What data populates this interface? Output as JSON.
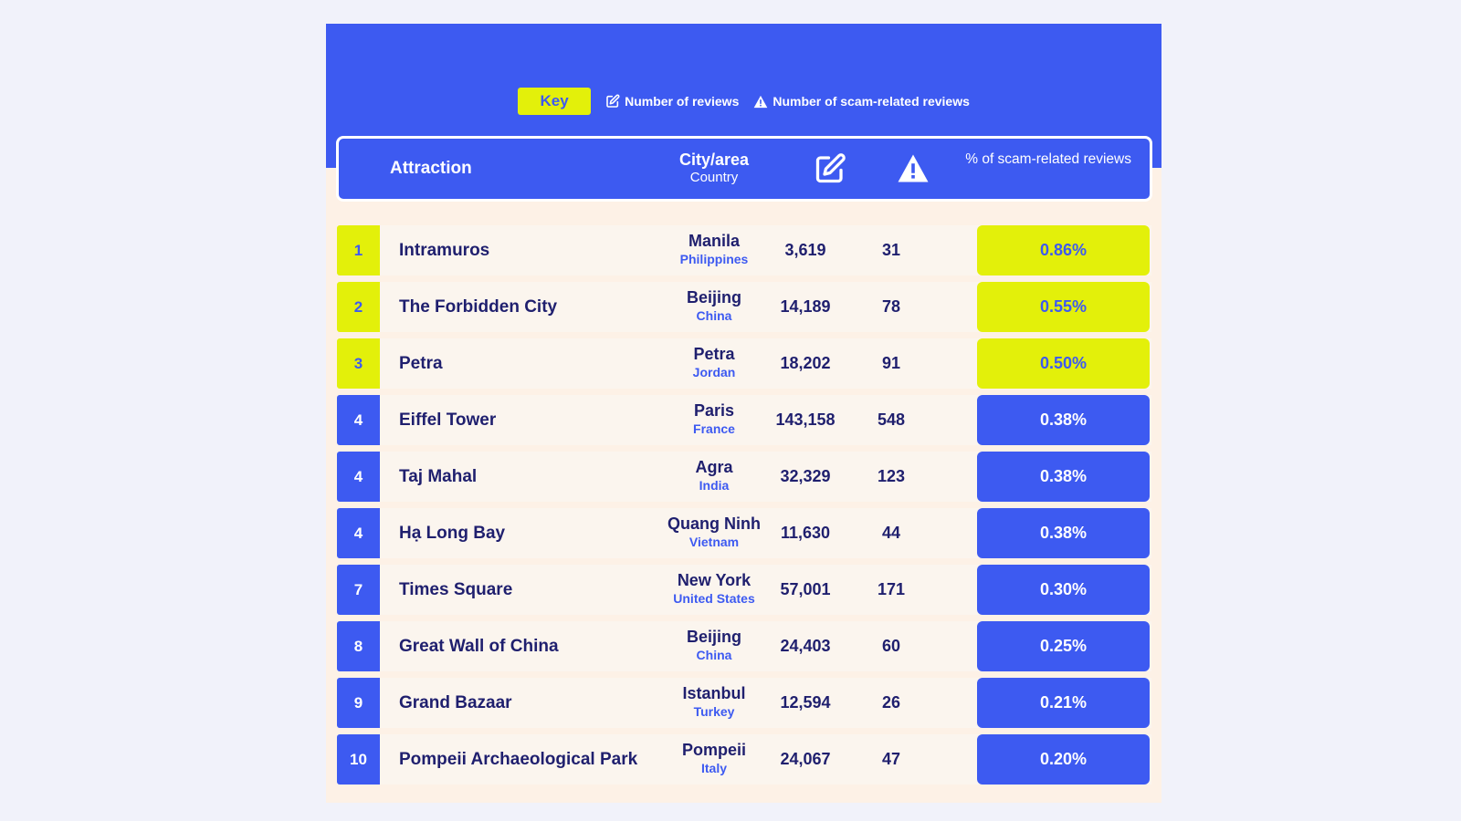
{
  "key": {
    "label": "Key",
    "reviews_label": "Number of reviews",
    "scam_label": "Number of scam-related reviews"
  },
  "header": {
    "attraction": "Attraction",
    "city": "City/area",
    "country": "Country",
    "reviews_icon": "edit-icon",
    "scam_icon": "warning-icon",
    "pct": "% of scam-related reviews"
  },
  "colors": {
    "accent_blue": "#3d5af1",
    "accent_yellow": "#e3f00a",
    "text_dark": "#1f1f6e"
  },
  "rows": [
    {
      "rank": "1",
      "attraction": "Intramuros",
      "city": "Manila",
      "country": "Philippines",
      "reviews": "3,619",
      "scam": "31",
      "pct": "0.86%",
      "highlight": true
    },
    {
      "rank": "2",
      "attraction": "The Forbidden City",
      "city": "Beijing",
      "country": "China",
      "reviews": "14,189",
      "scam": "78",
      "pct": "0.55%",
      "highlight": true
    },
    {
      "rank": "3",
      "attraction": "Petra",
      "city": "Petra",
      "country": "Jordan",
      "reviews": "18,202",
      "scam": "91",
      "pct": "0.50%",
      "highlight": true
    },
    {
      "rank": "4",
      "attraction": "Eiffel Tower",
      "city": "Paris",
      "country": "France",
      "reviews": "143,158",
      "scam": "548",
      "pct": "0.38%",
      "highlight": false
    },
    {
      "rank": "4",
      "attraction": "Taj Mahal",
      "city": "Agra",
      "country": "India",
      "reviews": "32,329",
      "scam": "123",
      "pct": "0.38%",
      "highlight": false
    },
    {
      "rank": "4",
      "attraction": "Hạ Long Bay",
      "city": "Quang Ninh",
      "country": "Vietnam",
      "reviews": "11,630",
      "scam": "44",
      "pct": "0.38%",
      "highlight": false
    },
    {
      "rank": "7",
      "attraction": "Times Square",
      "city": "New York",
      "country": "United States",
      "reviews": "57,001",
      "scam": "171",
      "pct": "0.30%",
      "highlight": false
    },
    {
      "rank": "8",
      "attraction": "Great Wall of China",
      "city": "Beijing",
      "country": "China",
      "reviews": "24,403",
      "scam": "60",
      "pct": "0.25%",
      "highlight": false
    },
    {
      "rank": "9",
      "attraction": "Grand Bazaar",
      "city": "Istanbul",
      "country": "Turkey",
      "reviews": "12,594",
      "scam": "26",
      "pct": "0.21%",
      "highlight": false
    },
    {
      "rank": "10",
      "attraction": "Pompeii Archaeological Park",
      "city": "Pompeii",
      "country": "Italy",
      "reviews": "24,067",
      "scam": "47",
      "pct": "0.20%",
      "highlight": false
    }
  ],
  "chart_data": {
    "type": "table",
    "columns": [
      "Attraction",
      "City/area",
      "Country",
      "Number of reviews",
      "Number of scam-related reviews",
      "% of scam-related reviews"
    ],
    "rows": [
      [
        "Intramuros",
        "Manila",
        "Philippines",
        3619,
        31,
        0.86
      ],
      [
        "The Forbidden City",
        "Beijing",
        "China",
        14189,
        78,
        0.55
      ],
      [
        "Petra",
        "Petra",
        "Jordan",
        18202,
        91,
        0.5
      ],
      [
        "Eiffel Tower",
        "Paris",
        "France",
        143158,
        548,
        0.38
      ],
      [
        "Taj Mahal",
        "Agra",
        "India",
        32329,
        123,
        0.38
      ],
      [
        "Hạ Long Bay",
        "Quang Ninh",
        "Vietnam",
        11630,
        44,
        0.38
      ],
      [
        "Times Square",
        "New York",
        "United States",
        57001,
        171,
        0.3
      ],
      [
        "Great Wall of China",
        "Beijing",
        "China",
        24403,
        60,
        0.25
      ],
      [
        "Grand Bazaar",
        "Istanbul",
        "Turkey",
        12594,
        26,
        0.21
      ],
      [
        "Pompeii Archaeological Park",
        "Pompeii",
        "Italy",
        24067,
        47,
        0.2
      ]
    ]
  }
}
